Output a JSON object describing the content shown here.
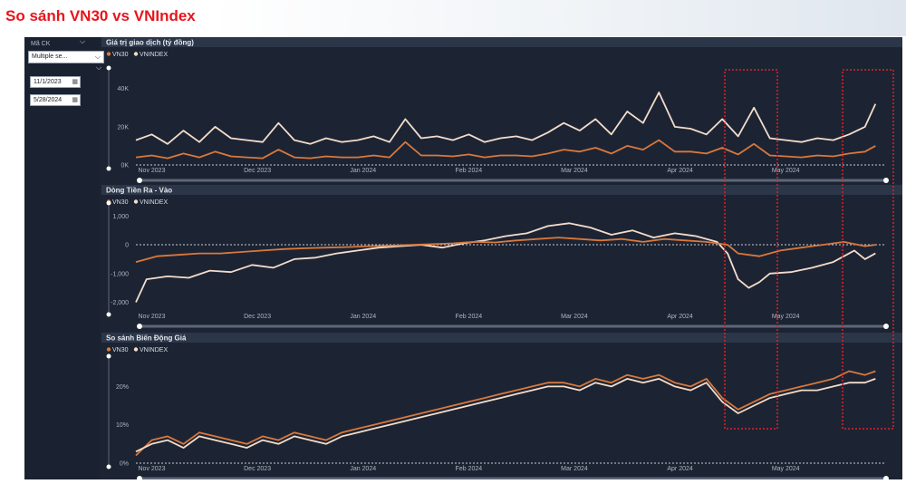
{
  "page_title": "So sánh VN30 vs VNIndex",
  "filter": {
    "ma_ck_label": "Mã CK",
    "ma_ck_value": "Multiple se...",
    "date_from": "11/1/2023",
    "date_to": "5/28/2024"
  },
  "colors": {
    "vn30": "#d9783c",
    "vnindex": "#f3dccb",
    "panel_bg": "#1c2433",
    "header_bg": "#2b3649",
    "highlight": "#e0202a"
  },
  "chart_data": [
    {
      "type": "line",
      "title": "Giá trị giao dịch (tỷ đồng)",
      "legend": [
        "VN30",
        "VNINDEX"
      ],
      "x_ticks": [
        "Nov 2023",
        "Dec 2023",
        "Jan 2024",
        "Feb 2024",
        "Mar 2024",
        "Apr 2024",
        "May 2024"
      ],
      "y_ticks": [
        "0K",
        "20K",
        "40K"
      ],
      "ylim": [
        0,
        47000
      ],
      "xlim": [
        0,
        7.1
      ],
      "series": [
        {
          "name": "VNINDEX",
          "x": [
            0,
            0.15,
            0.3,
            0.45,
            0.6,
            0.75,
            0.9,
            1.05,
            1.2,
            1.35,
            1.5,
            1.65,
            1.8,
            1.95,
            2.1,
            2.25,
            2.4,
            2.55,
            2.7,
            2.85,
            3.0,
            3.15,
            3.3,
            3.45,
            3.6,
            3.75,
            3.9,
            4.05,
            4.2,
            4.35,
            4.5,
            4.65,
            4.8,
            4.95,
            5.1,
            5.25,
            5.4,
            5.55,
            5.7,
            5.85,
            6.0,
            6.15,
            6.3,
            6.45,
            6.6,
            6.75,
            6.9,
            7.0
          ],
          "values": [
            13000,
            16000,
            11000,
            18000,
            12000,
            20000,
            14000,
            13000,
            12000,
            22000,
            13000,
            11000,
            14000,
            12000,
            13000,
            15000,
            12000,
            24000,
            14000,
            15000,
            13000,
            16000,
            12000,
            14000,
            15000,
            13000,
            17000,
            22000,
            18000,
            24000,
            16000,
            28000,
            22000,
            38000,
            20000,
            19000,
            16000,
            24000,
            15000,
            30000,
            14000,
            13000,
            12000,
            14000,
            13000,
            16000,
            20000,
            32000
          ]
        },
        {
          "name": "VN30",
          "x": [
            0,
            0.15,
            0.3,
            0.45,
            0.6,
            0.75,
            0.9,
            1.05,
            1.2,
            1.35,
            1.5,
            1.65,
            1.8,
            1.95,
            2.1,
            2.25,
            2.4,
            2.55,
            2.7,
            2.85,
            3.0,
            3.15,
            3.3,
            3.45,
            3.6,
            3.75,
            3.9,
            4.05,
            4.2,
            4.35,
            4.5,
            4.65,
            4.8,
            4.95,
            5.1,
            5.25,
            5.4,
            5.55,
            5.7,
            5.85,
            6.0,
            6.15,
            6.3,
            6.45,
            6.6,
            6.75,
            6.9,
            7.0
          ],
          "values": [
            4000,
            5000,
            3500,
            6000,
            4000,
            7000,
            4500,
            4000,
            3500,
            8000,
            4000,
            3500,
            4500,
            4000,
            4000,
            5000,
            4000,
            12000,
            5000,
            5000,
            4500,
            5500,
            4000,
            5000,
            5000,
            4500,
            6000,
            8000,
            7000,
            9000,
            6000,
            10000,
            8000,
            13000,
            7000,
            7000,
            6000,
            9000,
            5500,
            11000,
            5000,
            4500,
            4000,
            5000,
            4500,
            6000,
            7000,
            10000
          ]
        }
      ]
    },
    {
      "type": "line",
      "title": "Dòng Tiền Ra - Vào",
      "legend": [
        "VN30",
        "VNINDEX"
      ],
      "x_ticks": [
        "Nov 2023",
        "Dec 2023",
        "Jan 2024",
        "Feb 2024",
        "Mar 2024",
        "Apr 2024",
        "May 2024"
      ],
      "y_ticks": [
        "-2,000",
        "-1,000",
        "0",
        "1,000"
      ],
      "ylim": [
        -2300,
        1200
      ],
      "xlim": [
        0,
        7.1
      ],
      "series": [
        {
          "name": "VNINDEX",
          "x": [
            0,
            0.1,
            0.3,
            0.5,
            0.7,
            0.9,
            1.1,
            1.3,
            1.5,
            1.7,
            1.9,
            2.1,
            2.3,
            2.5,
            2.7,
            2.9,
            3.1,
            3.3,
            3.5,
            3.7,
            3.9,
            4.1,
            4.3,
            4.5,
            4.7,
            4.9,
            5.1,
            5.3,
            5.5,
            5.6,
            5.7,
            5.8,
            5.9,
            6.0,
            6.2,
            6.4,
            6.6,
            6.8,
            6.9,
            7.0
          ],
          "values": [
            -2000,
            -1200,
            -1100,
            -1150,
            -900,
            -950,
            -700,
            -800,
            -500,
            -450,
            -300,
            -200,
            -100,
            -50,
            0,
            -100,
            50,
            150,
            300,
            400,
            650,
            750,
            600,
            350,
            500,
            250,
            400,
            300,
            100,
            -300,
            -1200,
            -1500,
            -1300,
            -1000,
            -950,
            -800,
            -600,
            -200,
            -500,
            -300
          ]
        },
        {
          "name": "VN30",
          "x": [
            0,
            0.2,
            0.4,
            0.6,
            0.8,
            1.0,
            1.2,
            1.4,
            1.6,
            1.8,
            2.0,
            2.2,
            2.4,
            2.6,
            2.8,
            3.0,
            3.2,
            3.4,
            3.6,
            3.8,
            4.0,
            4.2,
            4.4,
            4.6,
            4.8,
            5.0,
            5.2,
            5.4,
            5.6,
            5.7,
            5.9,
            6.1,
            6.3,
            6.5,
            6.7,
            6.9,
            7.0
          ],
          "values": [
            -600,
            -400,
            -350,
            -300,
            -300,
            -250,
            -200,
            -150,
            -120,
            -100,
            -80,
            -50,
            -30,
            0,
            20,
            50,
            100,
            80,
            150,
            200,
            250,
            200,
            150,
            200,
            100,
            200,
            150,
            100,
            0,
            -300,
            -400,
            -200,
            -100,
            0,
            100,
            -50,
            0
          ]
        }
      ]
    },
    {
      "type": "line",
      "title": "So sánh Biến Động Giá",
      "legend": [
        "VN30",
        "VNINDEX"
      ],
      "x_ticks": [
        "Nov 2023",
        "Dec 2023",
        "Jan 2024",
        "Feb 2024",
        "Mar 2024",
        "Apr 2024",
        "May 2024"
      ],
      "y_ticks": [
        "0%",
        "10%",
        "20%"
      ],
      "ylim": [
        0,
        26
      ],
      "xlim": [
        0,
        7.1
      ],
      "series": [
        {
          "name": "VN30",
          "x": [
            0,
            0.15,
            0.3,
            0.45,
            0.6,
            0.75,
            0.9,
            1.05,
            1.2,
            1.35,
            1.5,
            1.65,
            1.8,
            1.95,
            2.1,
            2.25,
            2.4,
            2.55,
            2.7,
            2.85,
            3.0,
            3.15,
            3.3,
            3.45,
            3.6,
            3.75,
            3.9,
            4.05,
            4.2,
            4.35,
            4.5,
            4.65,
            4.8,
            4.95,
            5.1,
            5.25,
            5.4,
            5.55,
            5.7,
            5.85,
            6.0,
            6.15,
            6.3,
            6.45,
            6.6,
            6.75,
            6.9,
            7.0
          ],
          "values": [
            2,
            6,
            7,
            5,
            8,
            7,
            6,
            5,
            7,
            6,
            8,
            7,
            6,
            8,
            9,
            10,
            11,
            12,
            13,
            14,
            15,
            16,
            17,
            18,
            19,
            20,
            21,
            21,
            20,
            22,
            21,
            23,
            22,
            23,
            21,
            20,
            22,
            17,
            14,
            16,
            18,
            19,
            20,
            21,
            22,
            24,
            23,
            24
          ]
        },
        {
          "name": "VNINDEX",
          "x": [
            0,
            0.15,
            0.3,
            0.45,
            0.6,
            0.75,
            0.9,
            1.05,
            1.2,
            1.35,
            1.5,
            1.65,
            1.8,
            1.95,
            2.1,
            2.25,
            2.4,
            2.55,
            2.7,
            2.85,
            3.0,
            3.15,
            3.3,
            3.45,
            3.6,
            3.75,
            3.9,
            4.05,
            4.2,
            4.35,
            4.5,
            4.65,
            4.8,
            4.95,
            5.1,
            5.25,
            5.4,
            5.55,
            5.7,
            5.85,
            6.0,
            6.15,
            6.3,
            6.45,
            6.6,
            6.75,
            6.9,
            7.0
          ],
          "values": [
            3,
            5,
            6,
            4,
            7,
            6,
            5,
            4,
            6,
            5,
            7,
            6,
            5,
            7,
            8,
            9,
            10,
            11,
            12,
            13,
            14,
            15,
            16,
            17,
            18,
            19,
            20,
            20,
            19,
            21,
            20,
            22,
            21,
            22,
            20,
            19,
            21,
            16,
            13,
            15,
            17,
            18,
            19,
            19,
            20,
            21,
            21,
            22
          ]
        }
      ]
    }
  ]
}
